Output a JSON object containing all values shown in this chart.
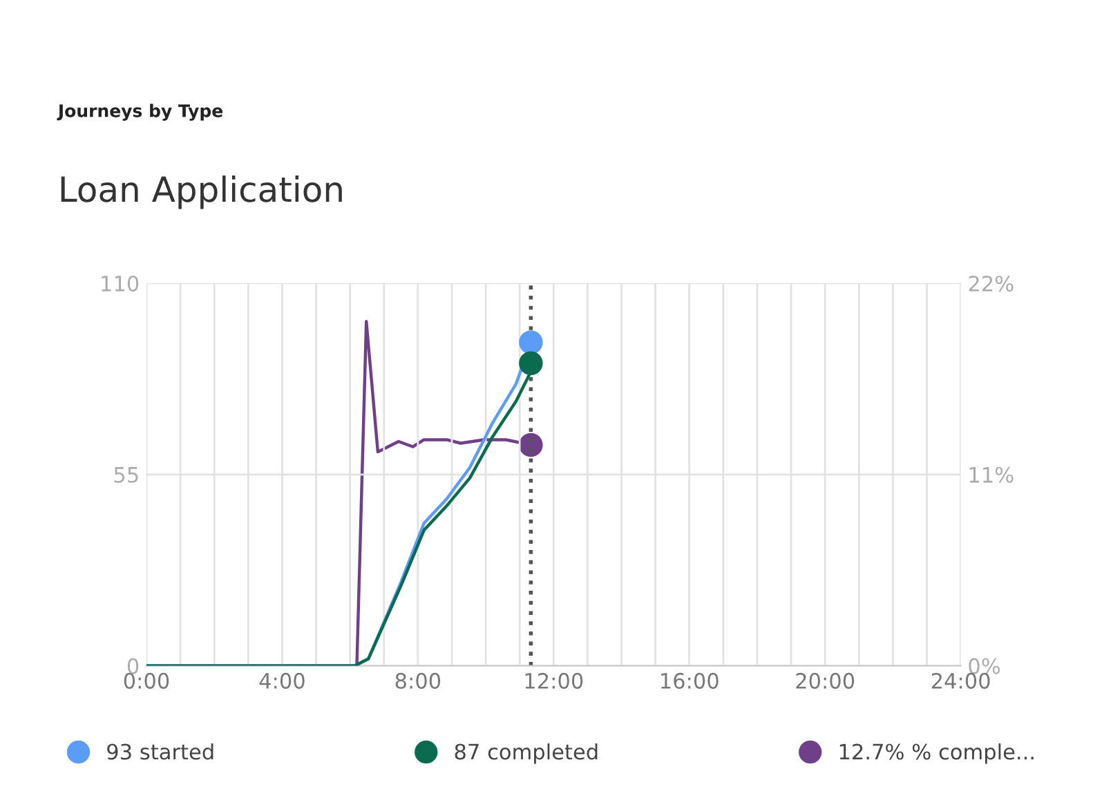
{
  "chart_data": {
    "type": "line",
    "subtitle": "Journeys by Type",
    "title": "Loan Application",
    "xlim": [
      0,
      24
    ],
    "ylim": [
      0,
      110
    ],
    "y2lim": [
      0,
      22
    ],
    "xticks": [
      {
        "value": 0,
        "label": "0:00"
      },
      {
        "value": 1,
        "label": null
      },
      {
        "value": 2,
        "label": null
      },
      {
        "value": 3,
        "label": null
      },
      {
        "value": 4,
        "label": "4:00"
      },
      {
        "value": 5,
        "label": null
      },
      {
        "value": 6,
        "label": null
      },
      {
        "value": 7,
        "label": null
      },
      {
        "value": 8,
        "label": "8:00"
      },
      {
        "value": 9,
        "label": null
      },
      {
        "value": 10,
        "label": null
      },
      {
        "value": 11,
        "label": null
      },
      {
        "value": 12,
        "label": "12:00"
      },
      {
        "value": 13,
        "label": null
      },
      {
        "value": 14,
        "label": null
      },
      {
        "value": 15,
        "label": null
      },
      {
        "value": 16,
        "label": "16:00"
      },
      {
        "value": 17,
        "label": null
      },
      {
        "value": 18,
        "label": null
      },
      {
        "value": 19,
        "label": null
      },
      {
        "value": 20,
        "label": "20:00"
      },
      {
        "value": 21,
        "label": null
      },
      {
        "value": 22,
        "label": null
      },
      {
        "value": 23,
        "label": null
      },
      {
        "value": 24,
        "label": "24:00"
      }
    ],
    "yticks": [
      0,
      55,
      110
    ],
    "y2ticks": [
      {
        "value": 0,
        "label": "0%"
      },
      {
        "value": 11,
        "label": "11%"
      },
      {
        "value": 22,
        "label": "22%"
      }
    ],
    "grid": true,
    "legend": "bottom",
    "ref_lines": [
      {
        "axis": "x",
        "value": 11.33,
        "color": "#555555",
        "line_style": "dotted"
      }
    ],
    "series": [
      {
        "name": "93 started",
        "color": "#5b9cf6",
        "x": [
          0,
          6.14,
          6.54,
          7.5,
          8.18,
          8.85,
          9.53,
          10.21,
          10.89,
          11.33
        ],
        "values": [
          0,
          0,
          2,
          24,
          41,
          48,
          57,
          70,
          81,
          93
        ]
      },
      {
        "name": "87 completed",
        "color": "#0b6b4f",
        "x": [
          0,
          6.14,
          6.54,
          7.5,
          8.18,
          8.85,
          9.53,
          10.21,
          10.89,
          11.3,
          11.33
        ],
        "values": [
          0,
          0,
          2,
          23,
          39,
          46,
          54,
          66,
          76,
          84,
          87
        ]
      },
      {
        "name": "12.7% % comple...",
        "color": "#6f3f8a",
        "axis": "y2",
        "x": [
          0,
          6.2,
          6.48,
          6.82,
          7.43,
          7.85,
          8.18,
          8.85,
          9.26,
          9.94,
          10.6,
          11.33
        ],
        "values": [
          0,
          0,
          19.8,
          12.3,
          12.9,
          12.6,
          13.0,
          13.0,
          12.8,
          13.0,
          13.0,
          12.7
        ]
      },
      {
        "type": "scatter",
        "color": "#5b9cf6",
        "x": [
          11.33
        ],
        "values": [
          93
        ]
      },
      {
        "type": "scatter",
        "color": "#0b6b4f",
        "x": [
          11.33
        ],
        "values": [
          87
        ]
      },
      {
        "type": "scatter",
        "color": "#6f3f8a",
        "axis": "y2",
        "x": [
          11.33
        ],
        "values": [
          12.7
        ]
      }
    ]
  }
}
